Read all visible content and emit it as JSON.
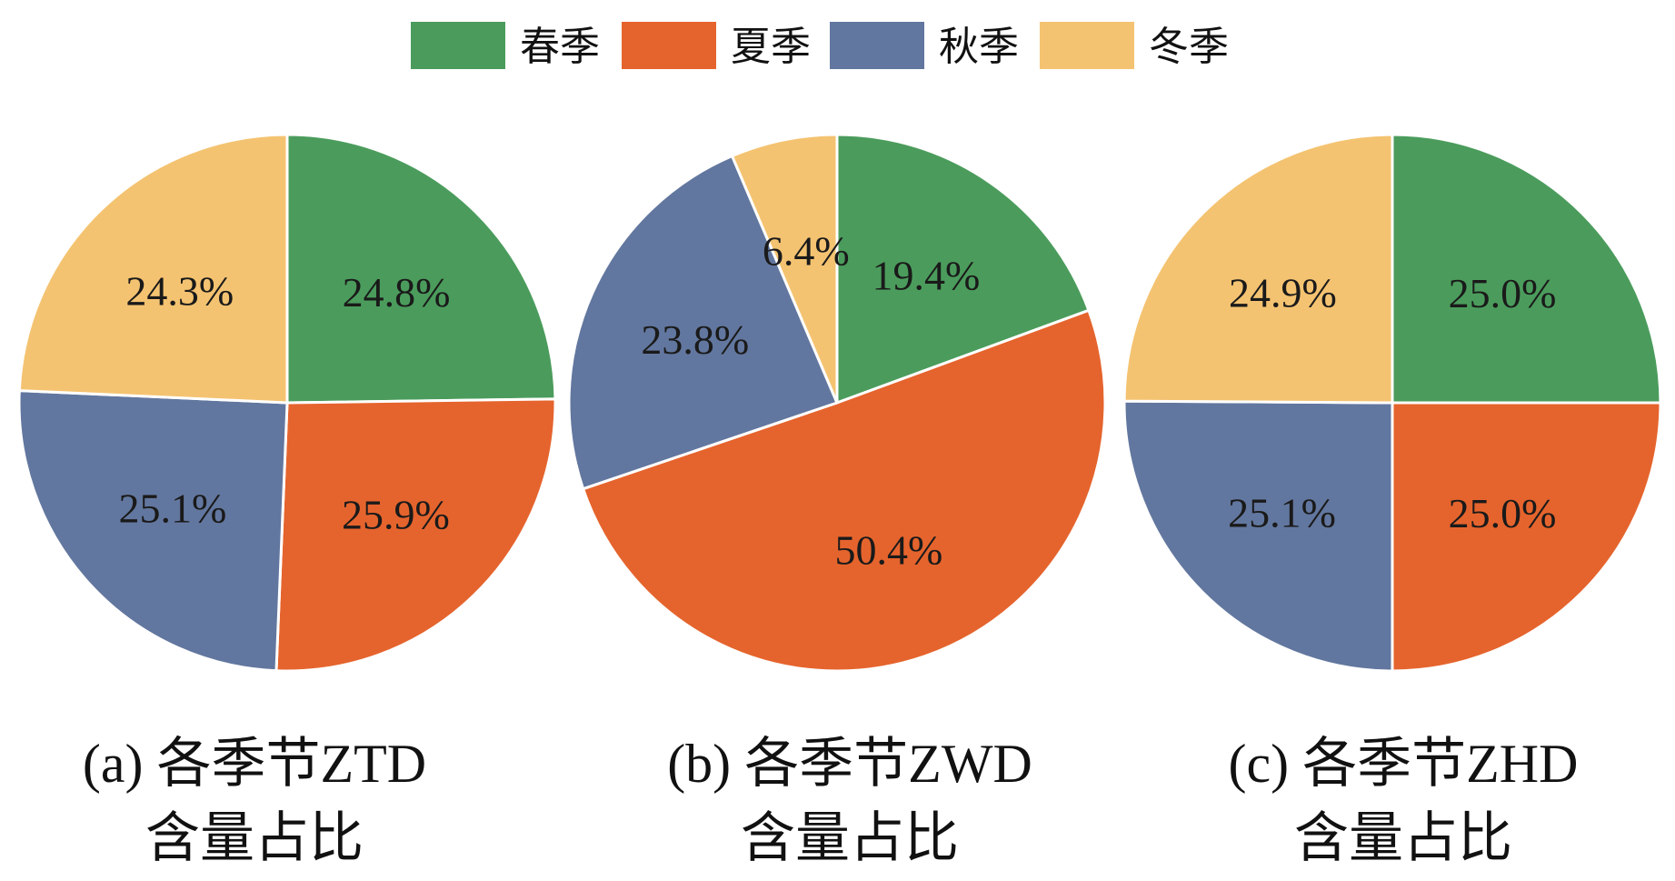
{
  "legend": [
    {
      "label": "春季",
      "color": "#4b9c5c"
    },
    {
      "label": "夏季",
      "color": "#e5642d"
    },
    {
      "label": "秋季",
      "color": "#62779f"
    },
    {
      "label": "冬季",
      "color": "#f4c371"
    }
  ],
  "chart_data": [
    {
      "type": "pie",
      "caption_line1": "(a) 各季节ZTD",
      "caption_line2": "含量占比",
      "categories": [
        "春季",
        "夏季",
        "秋季",
        "冬季"
      ],
      "values": [
        24.8,
        25.9,
        25.1,
        24.3
      ],
      "labels": [
        "24.8%",
        "25.9%",
        "25.1%",
        "24.3%"
      ]
    },
    {
      "type": "pie",
      "caption_line1": "(b) 各季节ZWD",
      "caption_line2": "含量占比",
      "categories": [
        "春季",
        "夏季",
        "秋季",
        "冬季"
      ],
      "values": [
        19.4,
        50.4,
        23.8,
        6.4
      ],
      "labels": [
        "19.4%",
        "50.4%",
        "23.8%",
        "6.4%"
      ]
    },
    {
      "type": "pie",
      "caption_line1": "(c) 各季节ZHD",
      "caption_line2": "含量占比",
      "categories": [
        "春季",
        "夏季",
        "秋季",
        "冬季"
      ],
      "values": [
        25.0,
        25.0,
        25.1,
        24.9
      ],
      "labels": [
        "25.0%",
        "25.0%",
        "25.1%",
        "24.9%"
      ]
    }
  ]
}
